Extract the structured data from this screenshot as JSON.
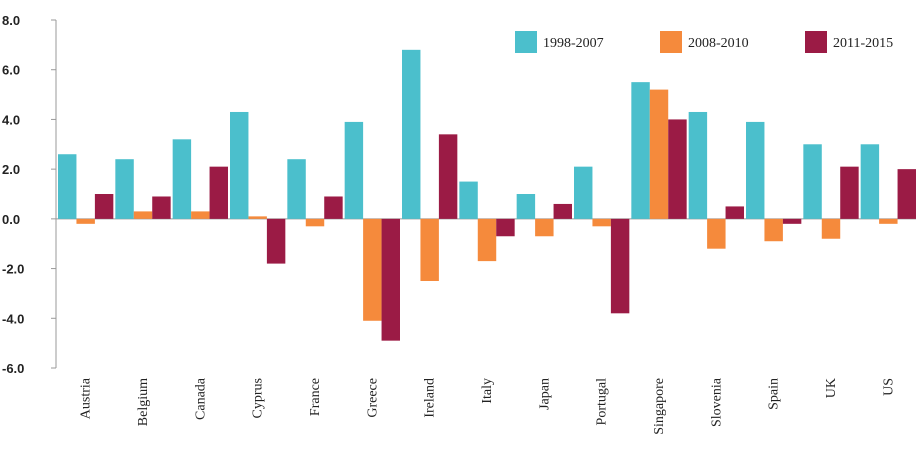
{
  "chart_data": {
    "type": "bar",
    "categories": [
      "Austria",
      "Belgium",
      "Canada",
      "Cyprus",
      "France",
      "Greece",
      "Ireland",
      "Italy",
      "Japan",
      "Portugal",
      "Singapore",
      "Slovenia",
      "Spain",
      "UK",
      "US"
    ],
    "series": [
      {
        "name": "1998-2007",
        "color": "#4bbfcc",
        "values": [
          2.6,
          2.4,
          3.2,
          4.3,
          2.4,
          3.9,
          6.8,
          1.5,
          1.0,
          2.1,
          5.5,
          4.3,
          3.9,
          3.0,
          3.0
        ]
      },
      {
        "name": "2008-2010",
        "color": "#f58a3c",
        "values": [
          -0.2,
          0.3,
          0.3,
          0.1,
          -0.3,
          -4.1,
          -2.5,
          -1.7,
          -0.7,
          -0.3,
          5.2,
          -1.2,
          -0.9,
          -0.8,
          -0.2
        ]
      },
      {
        "name": "2011-2015",
        "color": "#9b1b45",
        "values": [
          1.0,
          0.9,
          2.1,
          -1.8,
          0.9,
          -4.9,
          3.4,
          -0.7,
          0.6,
          -3.8,
          4.0,
          0.5,
          -0.2,
          2.1,
          2.0
        ]
      }
    ],
    "ylim": [
      -6,
      8
    ],
    "yticks": [
      {
        "value": -6,
        "label": "-6.0"
      },
      {
        "value": -4,
        "label": "-4.0"
      },
      {
        "value": -2,
        "label": "-2.0"
      },
      {
        "value": 0,
        "label": "0.0"
      },
      {
        "value": 2,
        "label": "2.0"
      },
      {
        "value": 4,
        "label": "4.0"
      },
      {
        "value": 6,
        "label": "6.0"
      },
      {
        "value": 8,
        "label": "8.0"
      }
    ],
    "legend": "top-right"
  }
}
